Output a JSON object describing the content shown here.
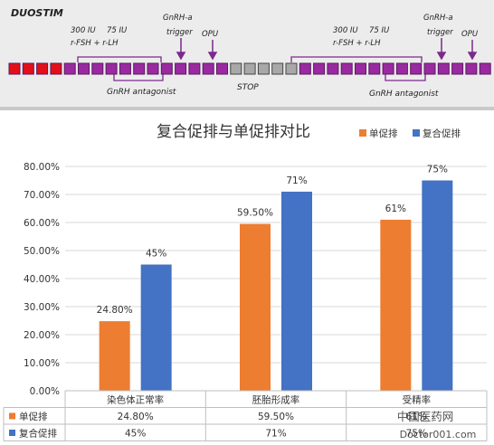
{
  "diagram": {
    "title": "DUOSTIM",
    "left": {
      "dose1": "300 IU",
      "dose2": "75 IU",
      "drugs": "r-FSH + r-LH",
      "trigger_line1": "GnRH-a",
      "trigger_line2": "trigger",
      "opu": "OPU",
      "antagonist": "GnRH antagonist"
    },
    "stop": "STOP",
    "right": {
      "dose1": "300 IU",
      "dose2": "75 IU",
      "drugs": "r-FSH + r-LH",
      "trigger_line1": "GnRH-a",
      "trigger_line2": "trigger",
      "opu": "OPU",
      "antagonist": "GnRH antagonist"
    },
    "colors": {
      "menses": "#e3101a",
      "stim": "#9a2aa0",
      "stop": "#a8a8a8",
      "line": "#7b2a8c"
    },
    "squares": [
      "menses",
      "menses",
      "menses",
      "menses",
      "stim",
      "stim",
      "stim",
      "stim",
      "stim",
      "stim",
      "stim",
      "stim",
      "stim",
      "stim",
      "stim",
      "stim",
      "stop",
      "stop",
      "stop",
      "stop",
      "stop",
      "stim",
      "stim",
      "stim",
      "stim",
      "stim",
      "stim",
      "stim",
      "stim",
      "stim",
      "stim",
      "stim",
      "stim",
      "stim",
      "stim"
    ]
  },
  "chart_data": {
    "type": "bar",
    "title": "复合促排与单促排对比",
    "categories": [
      "染色体正常率",
      "胚胎形成率",
      "受精率"
    ],
    "series": [
      {
        "name": "单促排",
        "values": [
          24.8,
          59.5,
          61
        ],
        "labels": [
          "24.80%",
          "59.50%",
          "61%"
        ],
        "table": [
          "24.80%",
          "59.50%",
          "61%"
        ],
        "color": "#ed7d31"
      },
      {
        "name": "复合促排",
        "values": [
          45,
          71,
          75
        ],
        "labels": [
          "45%",
          "71%",
          "75%"
        ],
        "table": [
          "45%",
          "71%",
          "75%"
        ],
        "color": "#4472c4"
      }
    ],
    "ylim": [
      0,
      80
    ],
    "yticks": [
      "0.00%",
      "10.00%",
      "20.00%",
      "30.00%",
      "40.00%",
      "50.00%",
      "60.00%",
      "70.00%",
      "80.00%"
    ],
    "grid": true,
    "legend": "top-right",
    "data_table": true
  },
  "watermark": {
    "line1": "中国医药网",
    "line2": "Doctor001.com"
  }
}
